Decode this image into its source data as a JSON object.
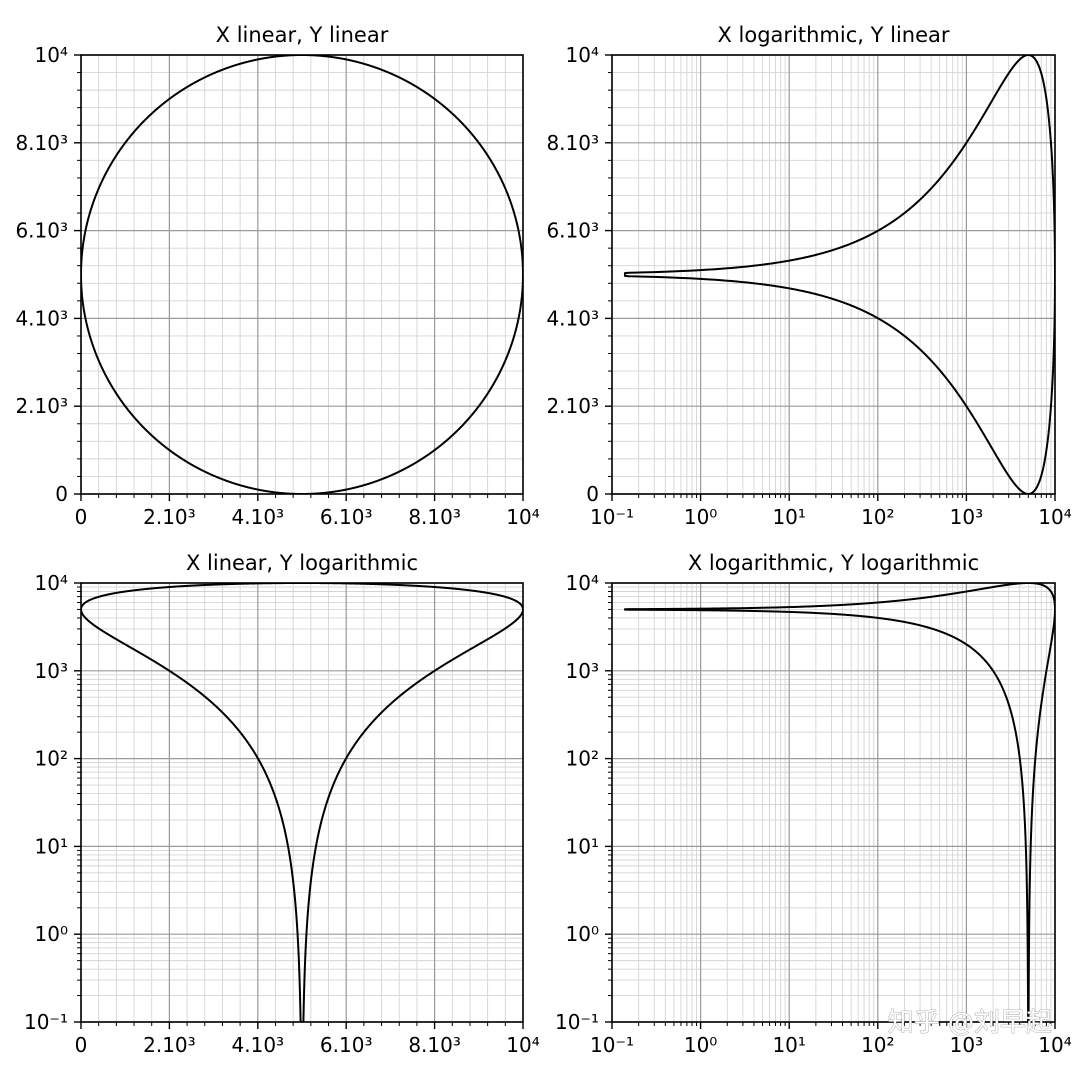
{
  "figure": {
    "watermark": "知乎 @刘早起"
  },
  "chart_data": [
    {
      "type": "line",
      "title": "X linear, Y linear",
      "xscale": "linear",
      "yscale": "linear",
      "xlim": [
        0,
        10000
      ],
      "ylim": [
        0,
        10000
      ],
      "grid": "major and minor",
      "curve": "circle",
      "center": [
        5000,
        5000
      ],
      "radius": 5000,
      "points": [
        [
          0,
          5000
        ],
        [
          1464,
          1464
        ],
        [
          5000,
          0
        ],
        [
          8536,
          1464
        ],
        [
          10000,
          5000
        ],
        [
          8536,
          8536
        ],
        [
          5000,
          10000
        ],
        [
          1464,
          8536
        ]
      ],
      "xticks": [
        {
          "value": 0,
          "label": "0"
        },
        {
          "value": 2000,
          "label": "2.10³"
        },
        {
          "value": 4000,
          "label": "4.10³"
        },
        {
          "value": 6000,
          "label": "6.10³"
        },
        {
          "value": 8000,
          "label": "8.10³"
        },
        {
          "value": 10000,
          "label": "10⁴"
        }
      ],
      "yticks": [
        {
          "value": 0,
          "label": "0"
        },
        {
          "value": 2000,
          "label": "2.10³"
        },
        {
          "value": 4000,
          "label": "4.10³"
        },
        {
          "value": 6000,
          "label": "6.10³"
        },
        {
          "value": 8000,
          "label": "8.10³"
        },
        {
          "value": 10000,
          "label": "10⁴"
        }
      ]
    },
    {
      "type": "line",
      "title": "X logarithmic, Y linear",
      "xscale": "log",
      "yscale": "linear",
      "xlim": [
        0.1,
        10000
      ],
      "ylim": [
        0,
        10000
      ],
      "grid": "major and minor",
      "curve": "circle",
      "center": [
        5000,
        5000
      ],
      "radius": 5000,
      "points": [
        [
          0.14,
          4910
        ],
        [
          1,
          5140
        ],
        [
          10,
          5320
        ],
        [
          100,
          6000
        ],
        [
          1000,
          8000
        ],
        [
          5000,
          10000
        ],
        [
          1000,
          2000
        ],
        [
          100,
          4000
        ],
        [
          10,
          4680
        ],
        [
          5000,
          0
        ]
      ],
      "xticks": [
        {
          "value": 0.1,
          "label": "10⁻¹"
        },
        {
          "value": 1,
          "label": "10⁰"
        },
        {
          "value": 10,
          "label": "10¹"
        },
        {
          "value": 100,
          "label": "10²"
        },
        {
          "value": 1000,
          "label": "10³"
        },
        {
          "value": 10000,
          "label": "10⁴"
        }
      ],
      "yticks": [
        {
          "value": 0,
          "label": "0"
        },
        {
          "value": 2000,
          "label": "2.10³"
        },
        {
          "value": 4000,
          "label": "4.10³"
        },
        {
          "value": 6000,
          "label": "6.10³"
        },
        {
          "value": 8000,
          "label": "8.10³"
        },
        {
          "value": 10000,
          "label": "10⁴"
        }
      ]
    },
    {
      "type": "line",
      "title": "X linear, Y logarithmic",
      "xscale": "linear",
      "yscale": "log",
      "xlim": [
        0,
        10000
      ],
      "ylim": [
        0.1,
        10000
      ],
      "grid": "major and minor",
      "curve": "circle",
      "center": [
        5000,
        5000
      ],
      "radius": 5000,
      "points": [
        [
          0,
          5000
        ],
        [
          1000,
          1000
        ],
        [
          3000,
          100
        ],
        [
          5000,
          0.1
        ],
        [
          7000,
          100
        ],
        [
          9000,
          1000
        ],
        [
          10000,
          5000
        ],
        [
          5000,
          10000
        ]
      ],
      "xticks": [
        {
          "value": 0,
          "label": "0"
        },
        {
          "value": 2000,
          "label": "2.10³"
        },
        {
          "value": 4000,
          "label": "4.10³"
        },
        {
          "value": 6000,
          "label": "6.10³"
        },
        {
          "value": 8000,
          "label": "8.10³"
        },
        {
          "value": 10000,
          "label": "10⁴"
        }
      ],
      "yticks": [
        {
          "value": 0.1,
          "label": "10⁻¹"
        },
        {
          "value": 1,
          "label": "10⁰"
        },
        {
          "value": 10,
          "label": "10¹"
        },
        {
          "value": 100,
          "label": "10²"
        },
        {
          "value": 1000,
          "label": "10³"
        },
        {
          "value": 10000,
          "label": "10⁴"
        }
      ]
    },
    {
      "type": "line",
      "title": "X logarithmic, Y logarithmic",
      "xscale": "log",
      "yscale": "log",
      "xlim": [
        0.1,
        10000
      ],
      "ylim": [
        0.1,
        10000
      ],
      "grid": "major and minor",
      "curve": "circle",
      "center": [
        5000,
        5000
      ],
      "radius": 5000,
      "points": [
        [
          0.14,
          4910
        ],
        [
          100,
          6000
        ],
        [
          1000,
          8000
        ],
        [
          5000,
          10000
        ],
        [
          10000,
          5000
        ],
        [
          5000,
          0.1
        ],
        [
          1000,
          2000
        ],
        [
          100,
          4000
        ]
      ],
      "xticks": [
        {
          "value": 0.1,
          "label": "10⁻¹"
        },
        {
          "value": 1,
          "label": "10⁰"
        },
        {
          "value": 10,
          "label": "10¹"
        },
        {
          "value": 100,
          "label": "10²"
        },
        {
          "value": 1000,
          "label": "10³"
        },
        {
          "value": 10000,
          "label": "10⁴"
        }
      ],
      "yticks": [
        {
          "value": 0.1,
          "label": "10⁻¹"
        },
        {
          "value": 1,
          "label": "10⁰"
        },
        {
          "value": 10,
          "label": "10¹"
        },
        {
          "value": 100,
          "label": "10²"
        },
        {
          "value": 1000,
          "label": "10³"
        },
        {
          "value": 10000,
          "label": "10⁴"
        }
      ]
    }
  ]
}
